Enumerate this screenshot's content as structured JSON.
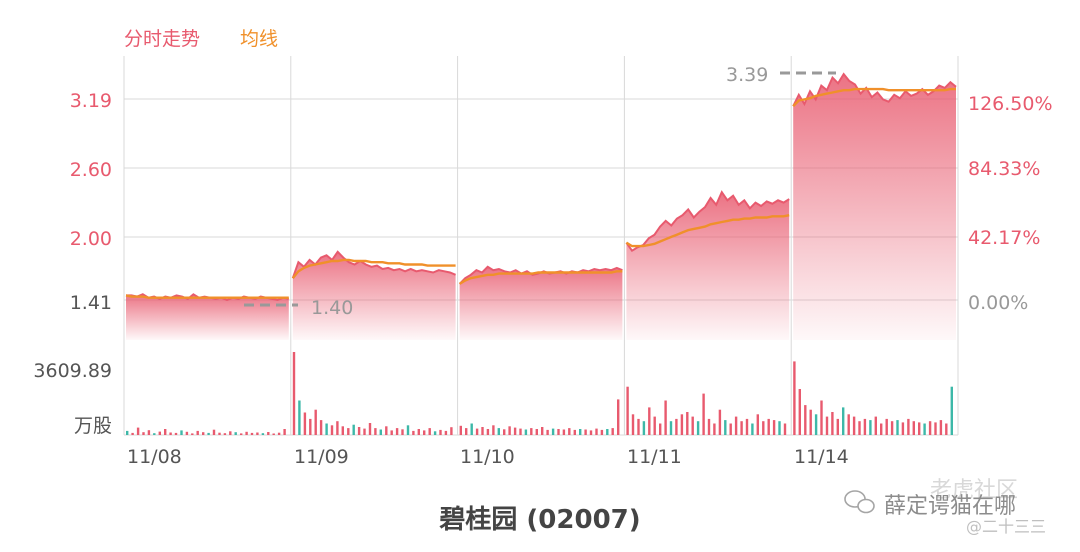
{
  "legend": {
    "price_label": "分时走势",
    "avg_label": "均线"
  },
  "title": "碧桂园 (02007)",
  "watermark": {
    "line1": "老虎社区",
    "line2": "薛定谔猫在哪",
    "line3": "@二十三三"
  },
  "colors": {
    "price": "#e85a6e",
    "avg": "#f0902a",
    "axis_left": "#e85a6e",
    "axis_right": "#e85a6e",
    "grid": "#d9d9d9",
    "marker": "#999999",
    "vol_up": "#e85a6e",
    "vol_down": "#3db8a8"
  },
  "chart_data": {
    "type": "line",
    "title": "",
    "x_categories": [
      "11/08",
      "11/09",
      "11/10",
      "11/11",
      "11/14"
    ],
    "ylim": [
      1.41,
      3.39
    ],
    "y_ticks_left": [
      "3.19",
      "2.60",
      "2.00",
      "1.41"
    ],
    "y_ticks_right": [
      "126.50%",
      "84.33%",
      "42.17%",
      "0.00%"
    ],
    "volume_axis_label": "3609.89",
    "volume_unit": "万股",
    "low_marker": "1.40",
    "high_marker": "3.39",
    "grid": true,
    "series": [
      {
        "name": "分时走势",
        "segments": [
          [
            1.45,
            1.45,
            1.44,
            1.46,
            1.43,
            1.44,
            1.42,
            1.44,
            1.43,
            1.45,
            1.44,
            1.42,
            1.46,
            1.43,
            1.44,
            1.43,
            1.42,
            1.43,
            1.41,
            1.43,
            1.42,
            1.44,
            1.43,
            1.42,
            1.44,
            1.43,
            1.42,
            1.41,
            1.43,
            1.42
          ],
          [
            1.6,
            1.74,
            1.7,
            1.76,
            1.72,
            1.78,
            1.8,
            1.76,
            1.83,
            1.78,
            1.74,
            1.72,
            1.75,
            1.72,
            1.7,
            1.71,
            1.68,
            1.69,
            1.67,
            1.68,
            1.66,
            1.68,
            1.66,
            1.67,
            1.66,
            1.65,
            1.67,
            1.66,
            1.65,
            1.63
          ],
          [
            1.55,
            1.6,
            1.63,
            1.67,
            1.65,
            1.7,
            1.67,
            1.68,
            1.66,
            1.65,
            1.67,
            1.64,
            1.66,
            1.63,
            1.64,
            1.66,
            1.64,
            1.65,
            1.66,
            1.64,
            1.66,
            1.65,
            1.67,
            1.66,
            1.68,
            1.67,
            1.68,
            1.67,
            1.69,
            1.67
          ],
          [
            1.91,
            1.84,
            1.87,
            1.89,
            1.95,
            1.98,
            2.05,
            2.1,
            2.06,
            2.12,
            2.15,
            2.2,
            2.13,
            2.18,
            2.22,
            2.3,
            2.24,
            2.35,
            2.28,
            2.32,
            2.24,
            2.28,
            2.21,
            2.26,
            2.23,
            2.27,
            2.25,
            2.28,
            2.26,
            2.29
          ],
          [
            3.1,
            3.2,
            3.12,
            3.23,
            3.16,
            3.28,
            3.24,
            3.35,
            3.3,
            3.38,
            3.32,
            3.29,
            3.21,
            3.26,
            3.18,
            3.22,
            3.16,
            3.14,
            3.2,
            3.17,
            3.23,
            3.19,
            3.21,
            3.25,
            3.2,
            3.23,
            3.28,
            3.26,
            3.31,
            3.27
          ]
        ]
      },
      {
        "name": "均线",
        "segments": [
          [
            1.45,
            1.44,
            1.44,
            1.44,
            1.43,
            1.43,
            1.43,
            1.43,
            1.43,
            1.43,
            1.43,
            1.43,
            1.43,
            1.43,
            1.43,
            1.43,
            1.43,
            1.43,
            1.43,
            1.43,
            1.43,
            1.43,
            1.43,
            1.43,
            1.43,
            1.43,
            1.43,
            1.43,
            1.43,
            1.43
          ],
          [
            1.6,
            1.66,
            1.69,
            1.71,
            1.72,
            1.73,
            1.74,
            1.75,
            1.75,
            1.76,
            1.76,
            1.75,
            1.75,
            1.75,
            1.74,
            1.74,
            1.74,
            1.73,
            1.73,
            1.73,
            1.72,
            1.72,
            1.72,
            1.72,
            1.71,
            1.71,
            1.71,
            1.71,
            1.71,
            1.71
          ],
          [
            1.55,
            1.58,
            1.6,
            1.61,
            1.62,
            1.63,
            1.63,
            1.64,
            1.64,
            1.64,
            1.64,
            1.64,
            1.64,
            1.64,
            1.65,
            1.65,
            1.65,
            1.65,
            1.65,
            1.65,
            1.65,
            1.65,
            1.65,
            1.65,
            1.65,
            1.65,
            1.65,
            1.65,
            1.66,
            1.66
          ],
          [
            1.91,
            1.88,
            1.88,
            1.88,
            1.89,
            1.9,
            1.92,
            1.94,
            1.96,
            1.98,
            2.0,
            2.02,
            2.03,
            2.04,
            2.05,
            2.07,
            2.08,
            2.09,
            2.1,
            2.11,
            2.11,
            2.12,
            2.12,
            2.13,
            2.13,
            2.13,
            2.14,
            2.14,
            2.14,
            2.15
          ],
          [
            3.1,
            3.15,
            3.16,
            3.17,
            3.19,
            3.2,
            3.21,
            3.22,
            3.23,
            3.24,
            3.24,
            3.25,
            3.25,
            3.25,
            3.25,
            3.25,
            3.25,
            3.24,
            3.24,
            3.24,
            3.24,
            3.24,
            3.24,
            3.24,
            3.24,
            3.24,
            3.24,
            3.24,
            3.25,
            3.25
          ]
        ]
      }
    ],
    "volume": {
      "max": 3609.89,
      "segments": [
        [
          180,
          90,
          320,
          120,
          210,
          80,
          150,
          260,
          110,
          90,
          200,
          140,
          70,
          180,
          120,
          90,
          230,
          100,
          80,
          160,
          120,
          70,
          140,
          90,
          110,
          80,
          130,
          60,
          100,
          260
        ],
        [
          3609.89,
          1500,
          980,
          700,
          1100,
          650,
          500,
          420,
          600,
          380,
          300,
          450,
          350,
          280,
          520,
          300,
          240,
          380,
          200,
          300,
          250,
          420,
          180,
          260,
          200,
          300,
          160,
          220,
          180,
          340
        ],
        [
          400,
          300,
          500,
          280,
          350,
          260,
          420,
          300,
          250,
          380,
          320,
          280,
          240,
          300,
          260,
          350,
          220,
          280,
          260,
          240,
          300,
          220,
          260,
          240,
          200,
          280,
          220,
          260,
          300,
          1550
        ],
        [
          2100,
          900,
          700,
          600,
          1200,
          800,
          500,
          1500,
          600,
          700,
          900,
          1000,
          800,
          600,
          1800,
          700,
          500,
          1100,
          650,
          500,
          800,
          600,
          700,
          500,
          900,
          600,
          700,
          650,
          600,
          500
        ],
        [
          3200,
          2000,
          1300,
          1100,
          900,
          1500,
          800,
          1000,
          700,
          1200,
          900,
          800,
          600,
          700,
          650,
          800,
          500,
          700,
          600,
          650,
          550,
          700,
          600,
          550,
          500,
          600,
          550,
          650,
          500,
          2100
        ]
      ]
    }
  }
}
